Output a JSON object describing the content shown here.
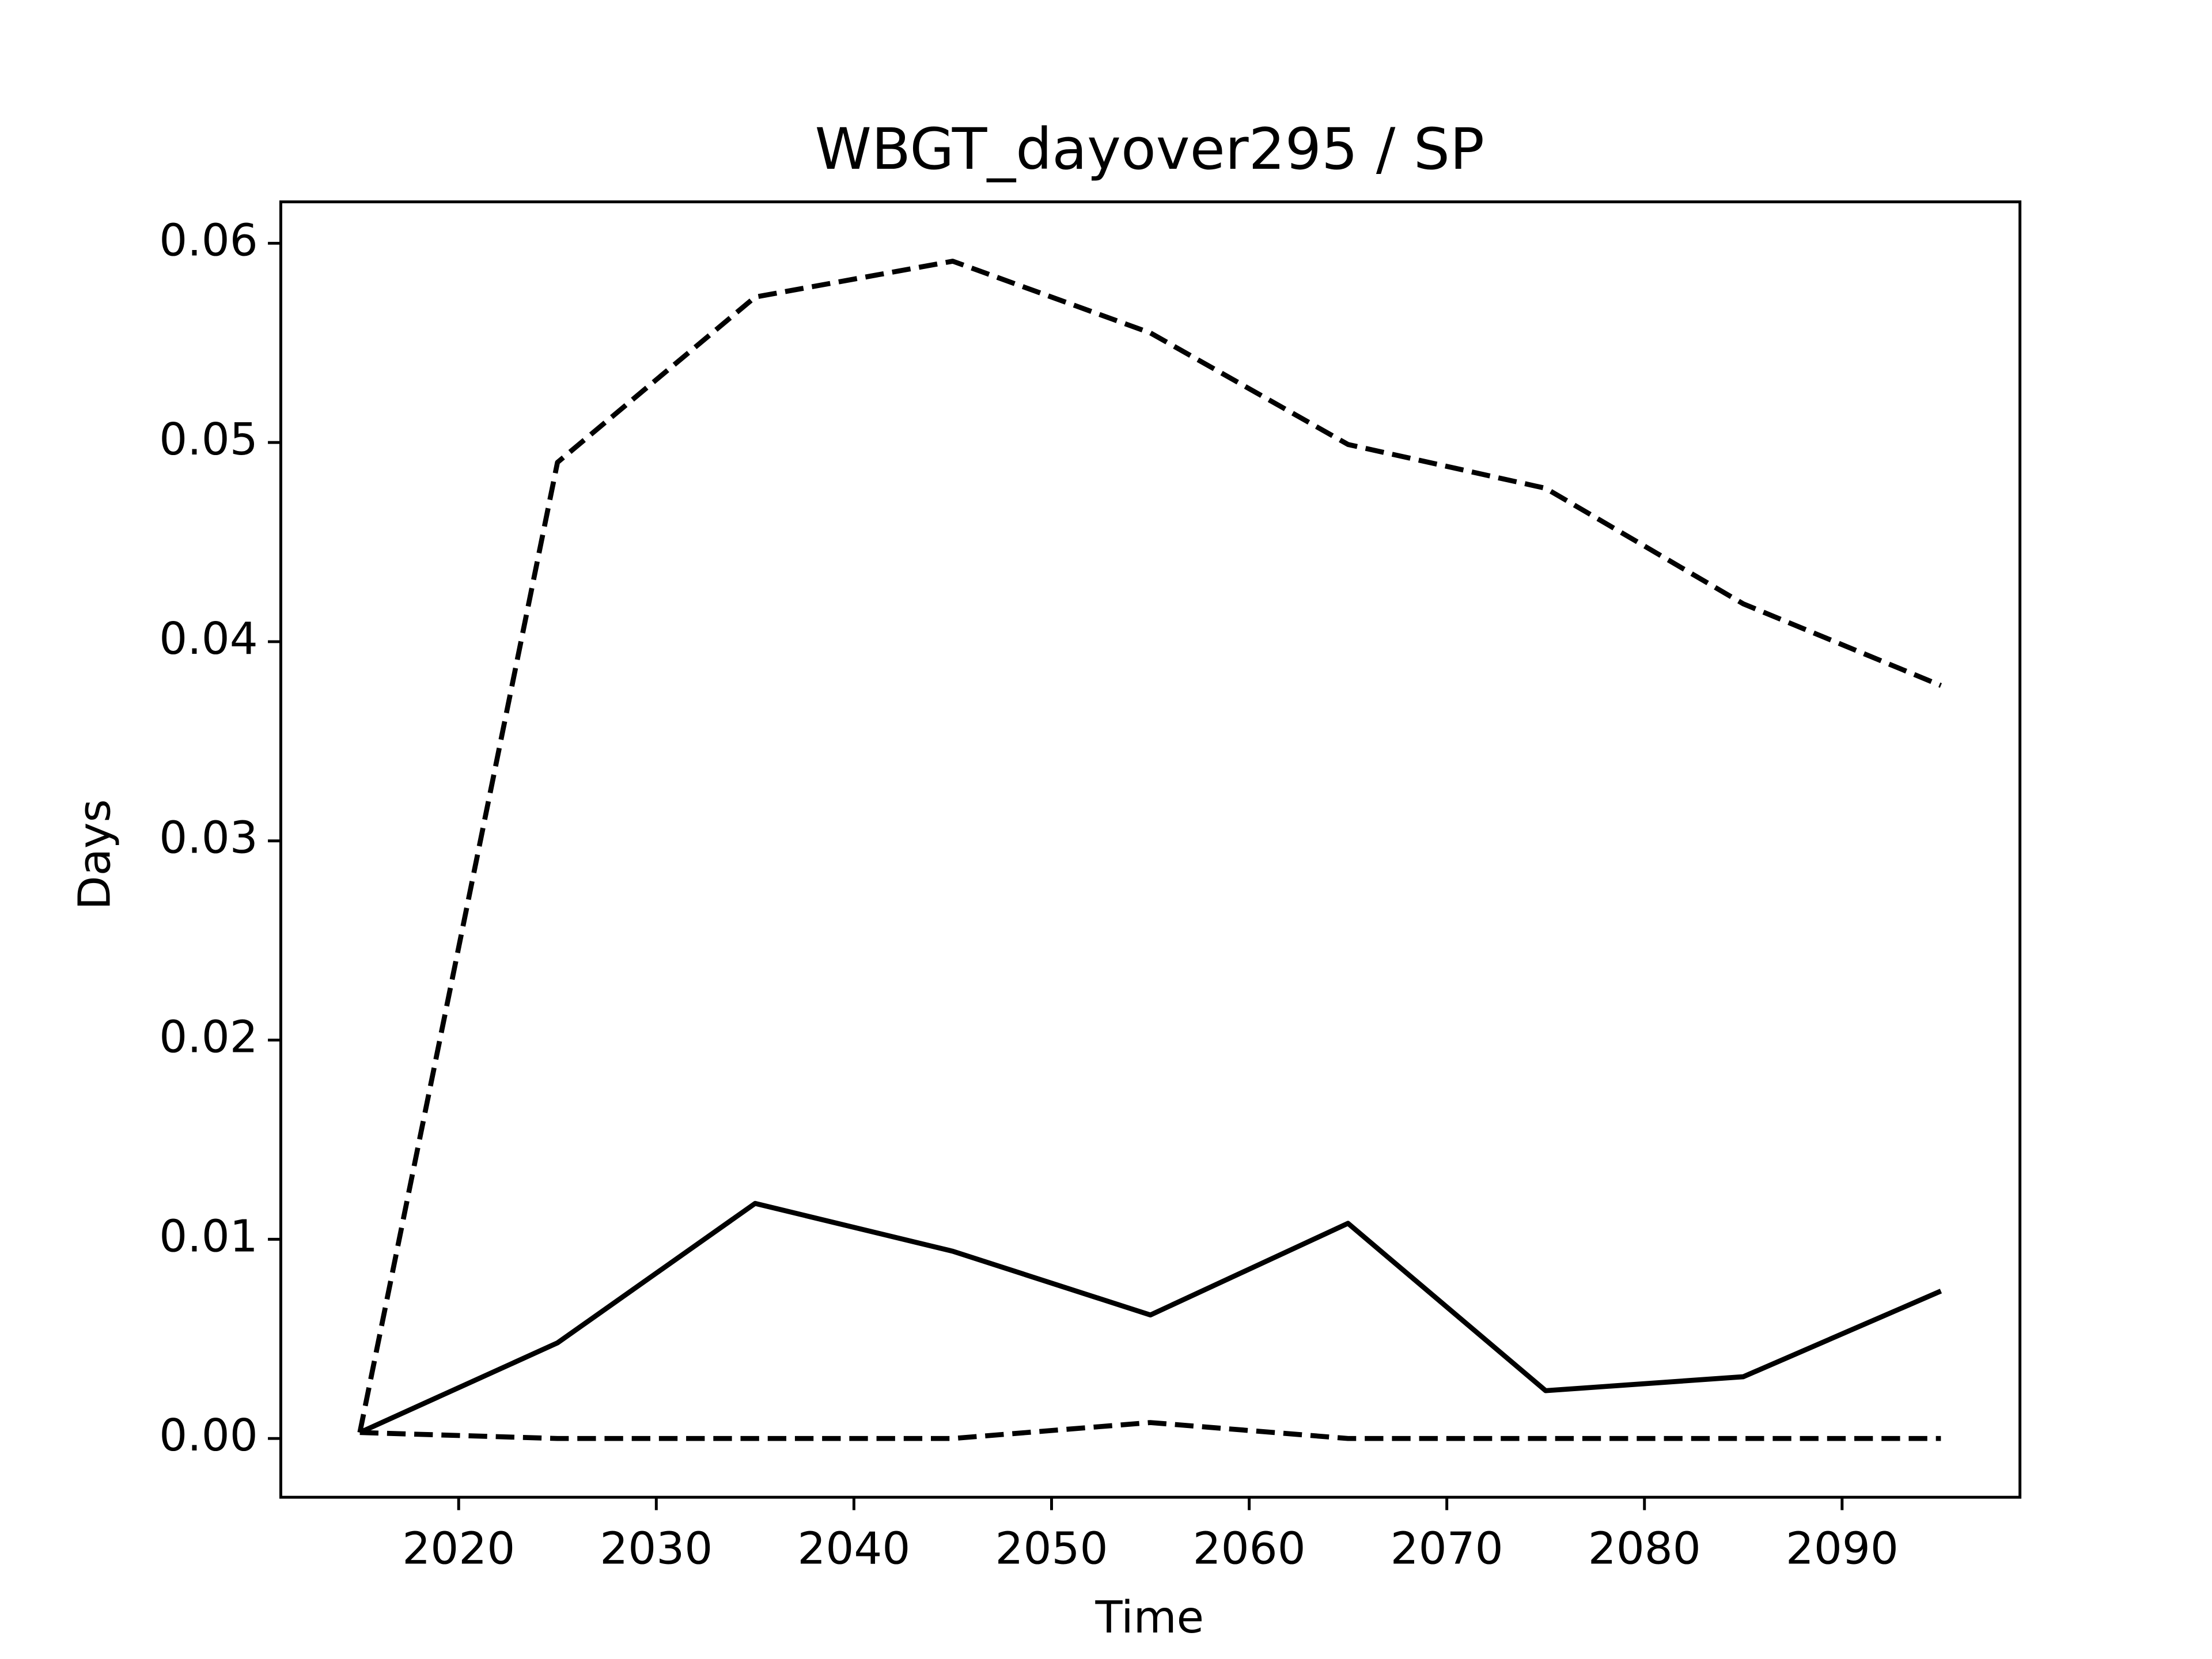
{
  "chart_data": {
    "type": "line",
    "title": "WBGT_dayover295 / SP",
    "x_label": "Time",
    "y_label": "Days",
    "x": [
      2015,
      2025,
      2035,
      2045,
      2055,
      2065,
      2075,
      2085,
      2095
    ],
    "series": [
      {
        "color": "#000000",
        "dash": "solid",
        "values": [
          0.0003,
          0.0048,
          0.0118,
          0.0094,
          0.0062,
          0.0108,
          0.0024,
          0.0031,
          0.0074
        ]
      },
      {
        "color": "#000000",
        "dash": "dashed",
        "values": [
          0.0003,
          0.049,
          0.0573,
          0.0591,
          0.0555,
          0.0499,
          0.0477,
          0.0419,
          0.0378
        ]
      },
      {
        "color": "#000000",
        "dash": "dashed",
        "values": [
          0.0003,
          0,
          0,
          0,
          0.0008,
          0,
          0,
          0,
          0
        ]
      }
    ],
    "xlim": [
      2011,
      2099
    ],
    "xticks": [
      2020,
      2030,
      2040,
      2050,
      2060,
      2070,
      2080,
      2090
    ],
    "ylim": [
      -0.00295,
      0.06208
    ],
    "yticks": [
      {
        "value": 0,
        "label": "0.00"
      },
      {
        "value": 0.01,
        "label": "0.01"
      },
      {
        "value": 0.02,
        "label": "0.02"
      },
      {
        "value": 0.03,
        "label": "0.03"
      },
      {
        "value": 0.04,
        "label": "0.04"
      },
      {
        "value": 0.05,
        "label": "0.05"
      },
      {
        "value": 0.06,
        "label": "0.06"
      }
    ],
    "grid": false
  }
}
